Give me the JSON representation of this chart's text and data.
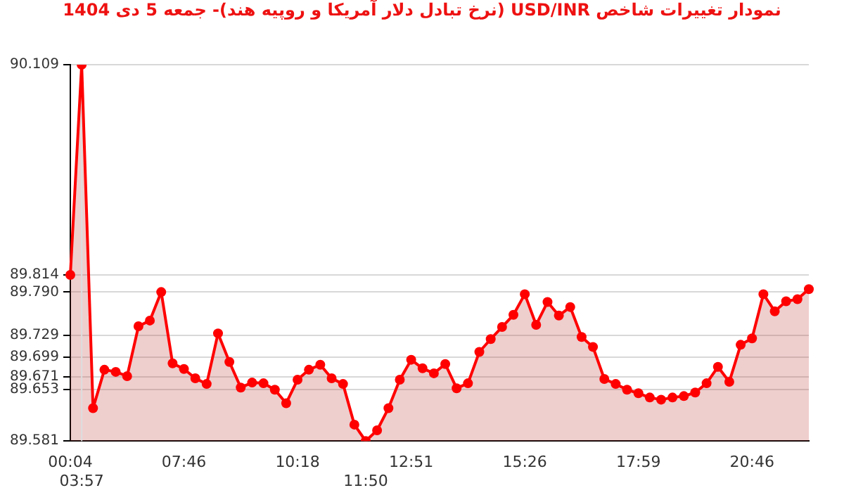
{
  "chart_data": {
    "type": "area",
    "title": "نمودار تغییرات شاخص USD/INR (نرخ تبادل دلار آمریکا و روپیه هند)- جمعه  5 دی 1404",
    "categories": [
      "00:04",
      "03:57",
      null,
      null,
      null,
      null,
      null,
      null,
      null,
      null,
      "07:46",
      null,
      null,
      null,
      null,
      null,
      null,
      null,
      null,
      null,
      "10:18",
      null,
      null,
      null,
      null,
      null,
      "11:50",
      null,
      null,
      null,
      "12:51",
      null,
      null,
      null,
      null,
      null,
      null,
      null,
      null,
      null,
      "15:26",
      null,
      null,
      null,
      null,
      null,
      null,
      null,
      null,
      null,
      "17:59",
      null,
      null,
      null,
      null,
      null,
      null,
      null,
      null,
      null,
      "20:46",
      null,
      null,
      null,
      null,
      null
    ],
    "series": [
      {
        "color": "#ff0000",
        "values": [
          89.814,
          90.109,
          89.627,
          89.681,
          89.678,
          89.672,
          89.742,
          89.75,
          89.79,
          89.69,
          89.682,
          89.669,
          89.661,
          89.732,
          89.692,
          89.656,
          89.663,
          89.662,
          89.653,
          89.634,
          89.667,
          89.681,
          89.688,
          89.669,
          89.661,
          89.604,
          89.581,
          89.596,
          89.627,
          89.667,
          89.695,
          89.683,
          89.676,
          89.689,
          89.655,
          89.662,
          89.706,
          89.724,
          89.741,
          89.758,
          89.787,
          89.744,
          89.776,
          89.757,
          89.769,
          89.727,
          89.713,
          89.668,
          89.661,
          89.653,
          89.648,
          89.642,
          89.639,
          89.642,
          89.644,
          89.649,
          89.662,
          89.685,
          89.664,
          89.716,
          89.725,
          89.787,
          89.763,
          89.777,
          89.78,
          89.794
        ]
      }
    ],
    "ylim": [
      89.581,
      90.109
    ],
    "yticks": [
      89.581,
      89.653,
      89.671,
      89.699,
      89.729,
      {
        "value": 89.79,
        "label": "89.790"
      },
      89.814,
      90.109
    ],
    "grid": "y",
    "marker": "circle",
    "line_style": "solid",
    "legend": false,
    "ref_lines": [
      {
        "axis": "x",
        "value": "03:57",
        "color": "#dddddd"
      }
    ]
  }
}
